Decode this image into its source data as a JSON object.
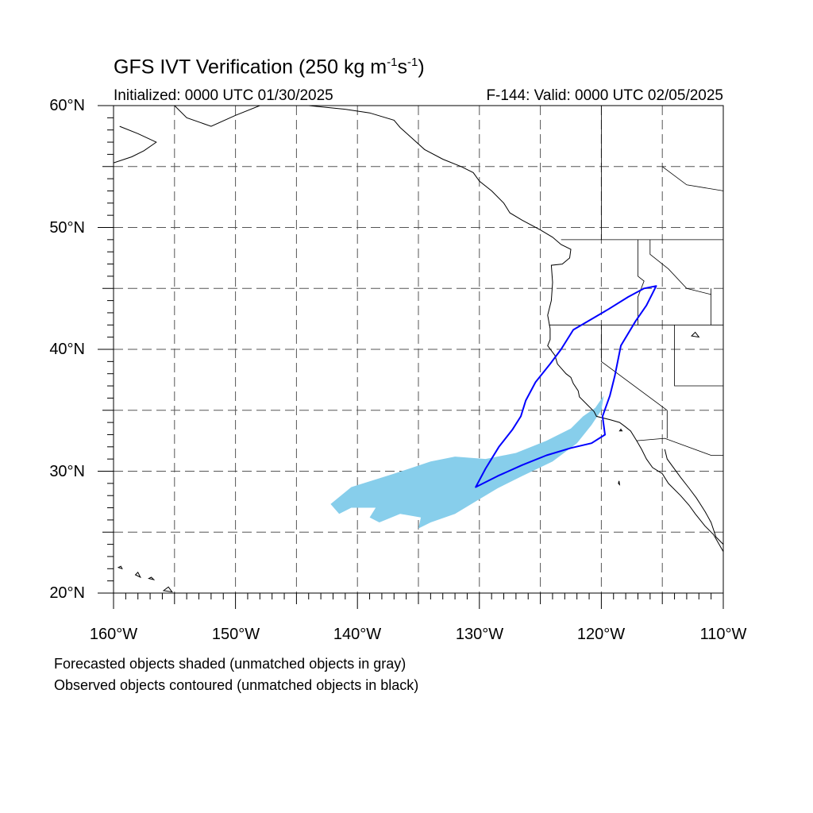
{
  "title": {
    "prefix": "GFS IVT Verification (250 kg m",
    "sup1": "-1",
    "mid": "s",
    "sup2": "-1",
    "suffix": ")"
  },
  "subtitle_left": "Initialized: 0000 UTC 01/30/2025",
  "subtitle_right": "F-144: Valid: 0000 UTC 02/05/2025",
  "lat_labels": [
    "60°N",
    "50°N",
    "40°N",
    "30°N",
    "20°N"
  ],
  "lon_labels": [
    "160°W",
    "150°W",
    "140°W",
    "130°W",
    "120°W",
    "110°W"
  ],
  "footnotes": [
    "Forecasted objects shaded (unmatched objects in gray)",
    "Observed objects contoured (unmatched objects in black)"
  ],
  "map": {
    "lon_range": [
      -160,
      -110
    ],
    "lat_range": [
      20,
      60
    ],
    "grid_spacing_deg": 5,
    "forecast_object_color": "#87ceeb",
    "observed_object_color": "#0000ff",
    "forecast_object": [
      [
        -142.2,
        27.3
      ],
      [
        -140.5,
        28.7
      ],
      [
        -137.0,
        29.8
      ],
      [
        -134.0,
        30.8
      ],
      [
        -132.0,
        31.2
      ],
      [
        -129.5,
        31.0
      ],
      [
        -127.0,
        31.5
      ],
      [
        -124.5,
        32.5
      ],
      [
        -122.5,
        33.5
      ],
      [
        -121.5,
        34.5
      ],
      [
        -120.5,
        35.2
      ],
      [
        -119.8,
        36.2
      ],
      [
        -120.0,
        35.0
      ],
      [
        -120.8,
        33.8
      ],
      [
        -122.0,
        32.3
      ],
      [
        -124.0,
        30.8
      ],
      [
        -126.5,
        29.6
      ],
      [
        -128.5,
        28.6
      ],
      [
        -130.5,
        27.4
      ],
      [
        -132.0,
        26.5
      ],
      [
        -134.0,
        25.8
      ],
      [
        -135.0,
        25.3
      ],
      [
        -134.8,
        26.2
      ],
      [
        -136.5,
        26.5
      ],
      [
        -138.2,
        25.8
      ],
      [
        -139.0,
        26.2
      ],
      [
        -138.5,
        27.0
      ],
      [
        -140.5,
        27.0
      ],
      [
        -141.5,
        26.5
      ]
    ],
    "observed_object": [
      [
        -130.3,
        28.7
      ],
      [
        -128.5,
        29.6
      ],
      [
        -126.5,
        30.5
      ],
      [
        -124.5,
        31.3
      ],
      [
        -122.5,
        31.9
      ],
      [
        -120.8,
        32.3
      ],
      [
        -119.7,
        33.0
      ],
      [
        -119.9,
        34.5
      ],
      [
        -119.3,
        36.2
      ],
      [
        -118.9,
        37.8
      ],
      [
        -118.4,
        40.3
      ],
      [
        -117.2,
        42.3
      ],
      [
        -116.3,
        43.6
      ],
      [
        -115.8,
        44.6
      ],
      [
        -115.5,
        45.2
      ],
      [
        -116.5,
        45.0
      ],
      [
        -117.8,
        44.3
      ],
      [
        -119.4,
        43.3
      ],
      [
        -120.6,
        42.6
      ],
      [
        -122.3,
        41.6
      ],
      [
        -123.3,
        40.0
      ],
      [
        -124.2,
        38.8
      ],
      [
        -125.4,
        37.3
      ],
      [
        -126.2,
        35.8
      ],
      [
        -126.6,
        34.5
      ],
      [
        -127.3,
        33.4
      ],
      [
        -128.4,
        32.0
      ],
      [
        -129.5,
        30.2
      ]
    ],
    "coastlines": [
      [
        [
          -155.0,
          60.0
        ],
        [
          -154.0,
          59.0
        ],
        [
          -152.0,
          58.3
        ],
        [
          -150.0,
          59.2
        ],
        [
          -148.0,
          60.0
        ],
        [
          -146.0,
          60.0
        ],
        [
          -144.0,
          60.0
        ],
        [
          -141.0,
          59.7
        ],
        [
          -139.0,
          59.4
        ],
        [
          -137.0,
          58.8
        ],
        [
          -136.5,
          58.2
        ],
        [
          -135.5,
          57.3
        ],
        [
          -134.5,
          56.4
        ],
        [
          -133.0,
          55.6
        ],
        [
          -131.5,
          55.0
        ],
        [
          -130.5,
          54.5
        ],
        [
          -130.0,
          53.8
        ],
        [
          -129.0,
          53.0
        ],
        [
          -128.0,
          52.0
        ],
        [
          -127.5,
          51.2
        ],
        [
          -126.5,
          50.6
        ],
        [
          -125.0,
          49.8
        ],
        [
          -124.0,
          49.2
        ],
        [
          -123.3,
          48.6
        ],
        [
          -122.5,
          48.2
        ],
        [
          -122.6,
          47.5
        ],
        [
          -123.2,
          47.0
        ],
        [
          -124.1,
          46.9
        ],
        [
          -124.0,
          45.5
        ],
        [
          -124.1,
          44.0
        ],
        [
          -124.4,
          42.8
        ],
        [
          -124.2,
          41.7
        ],
        [
          -124.2,
          40.8
        ],
        [
          -124.4,
          40.3
        ],
        [
          -123.8,
          39.5
        ],
        [
          -123.6,
          38.8
        ],
        [
          -122.9,
          38.0
        ],
        [
          -122.5,
          37.7
        ],
        [
          -122.3,
          37.2
        ],
        [
          -121.9,
          36.6
        ],
        [
          -121.8,
          36.1
        ],
        [
          -121.2,
          35.5
        ],
        [
          -120.6,
          34.9
        ],
        [
          -120.4,
          34.5
        ],
        [
          -119.2,
          34.2
        ],
        [
          -118.5,
          34.0
        ],
        [
          -118.1,
          33.7
        ],
        [
          -117.6,
          33.3
        ],
        [
          -117.1,
          32.5
        ],
        [
          -116.7,
          31.8
        ],
        [
          -116.3,
          31.0
        ],
        [
          -115.8,
          30.3
        ],
        [
          -115.0,
          29.8
        ],
        [
          -114.5,
          29.0
        ],
        [
          -113.5,
          28.0
        ],
        [
          -112.8,
          27.2
        ],
        [
          -112.3,
          26.5
        ],
        [
          -111.5,
          25.5
        ],
        [
          -110.8,
          24.8
        ],
        [
          -110.0,
          23.4
        ]
      ],
      [
        [
          -160.0,
          55.3
        ],
        [
          -158.5,
          55.8
        ],
        [
          -157.5,
          56.3
        ],
        [
          -156.5,
          57.0
        ],
        [
          -158.0,
          57.7
        ],
        [
          -159.5,
          58.3
        ]
      ],
      [
        [
          -114.8,
          31.8
        ],
        [
          -114.6,
          31.0
        ],
        [
          -113.5,
          29.5
        ],
        [
          -112.8,
          28.6
        ],
        [
          -112.2,
          27.8
        ],
        [
          -111.5,
          26.7
        ],
        [
          -111.0,
          25.8
        ],
        [
          -110.6,
          24.6
        ],
        [
          -110.0,
          24.0
        ]
      ]
    ],
    "borders": [
      [
        [
          -123.3,
          49.0
        ],
        [
          -110.0,
          49.0
        ]
      ],
      [
        [
          -124.3,
          42.0
        ],
        [
          -117.0,
          42.0
        ],
        [
          -111.0,
          42.0
        ]
      ],
      [
        [
          -120.0,
          42.0
        ],
        [
          -120.0,
          39.0
        ],
        [
          -114.6,
          35.0
        ]
      ],
      [
        [
          -117.1,
          32.5
        ],
        [
          -114.8,
          32.7
        ],
        [
          -111.0,
          31.3
        ],
        [
          -110.0,
          31.3
        ]
      ],
      [
        [
          -117.0,
          49.0
        ],
        [
          -117.0,
          46.0
        ],
        [
          -116.5,
          45.6
        ],
        [
          -117.0,
          44.3
        ],
        [
          -117.0,
          42.0
        ]
      ],
      [
        [
          -116.0,
          49.0
        ],
        [
          -116.0,
          47.8
        ],
        [
          -114.5,
          46.6
        ],
        [
          -113.0,
          45.0
        ],
        [
          -111.0,
          44.5
        ]
      ],
      [
        [
          -111.0,
          45.0
        ],
        [
          -111.0,
          42.0
        ],
        [
          -110.0,
          42.0
        ]
      ],
      [
        [
          -114.0,
          42.0
        ],
        [
          -114.0,
          37.0
        ],
        [
          -110.0,
          37.0
        ]
      ],
      [
        [
          -114.6,
          35.0
        ],
        [
          -114.6,
          32.7
        ]
      ],
      [
        [
          -120.0,
          60.0
        ],
        [
          -120.0,
          49.0
        ]
      ],
      [
        [
          -115.0,
          55.0
        ],
        [
          -113.0,
          53.5
        ],
        [
          -110.0,
          53.0
        ]
      ]
    ],
    "islands": [
      [
        [
          -155.9,
          20.2
        ],
        [
          -155.2,
          20.1
        ],
        [
          -155.5,
          20.5
        ],
        [
          -155.9,
          20.2
        ]
      ],
      [
        [
          -157.1,
          21.2
        ],
        [
          -156.7,
          21.1
        ],
        [
          -156.9,
          21.3
        ],
        [
          -157.1,
          21.2
        ]
      ],
      [
        [
          -158.2,
          21.5
        ],
        [
          -157.8,
          21.3
        ],
        [
          -158.0,
          21.7
        ],
        [
          -158.2,
          21.5
        ]
      ],
      [
        [
          -159.6,
          22.1
        ],
        [
          -159.3,
          22.0
        ],
        [
          -159.4,
          22.2
        ],
        [
          -159.6,
          22.1
        ]
      ],
      [
        [
          -118.5,
          33.3
        ],
        [
          -118.3,
          33.3
        ],
        [
          -118.4,
          33.45
        ],
        [
          -118.5,
          33.3
        ]
      ],
      [
        [
          -118.6,
          29.0
        ],
        [
          -118.5,
          28.9
        ],
        [
          -118.55,
          29.2
        ],
        [
          -118.6,
          29.0
        ]
      ],
      [
        [
          -112.6,
          41.1
        ],
        [
          -112.0,
          41.0
        ],
        [
          -112.3,
          41.4
        ],
        [
          -112.6,
          41.1
        ]
      ]
    ]
  }
}
